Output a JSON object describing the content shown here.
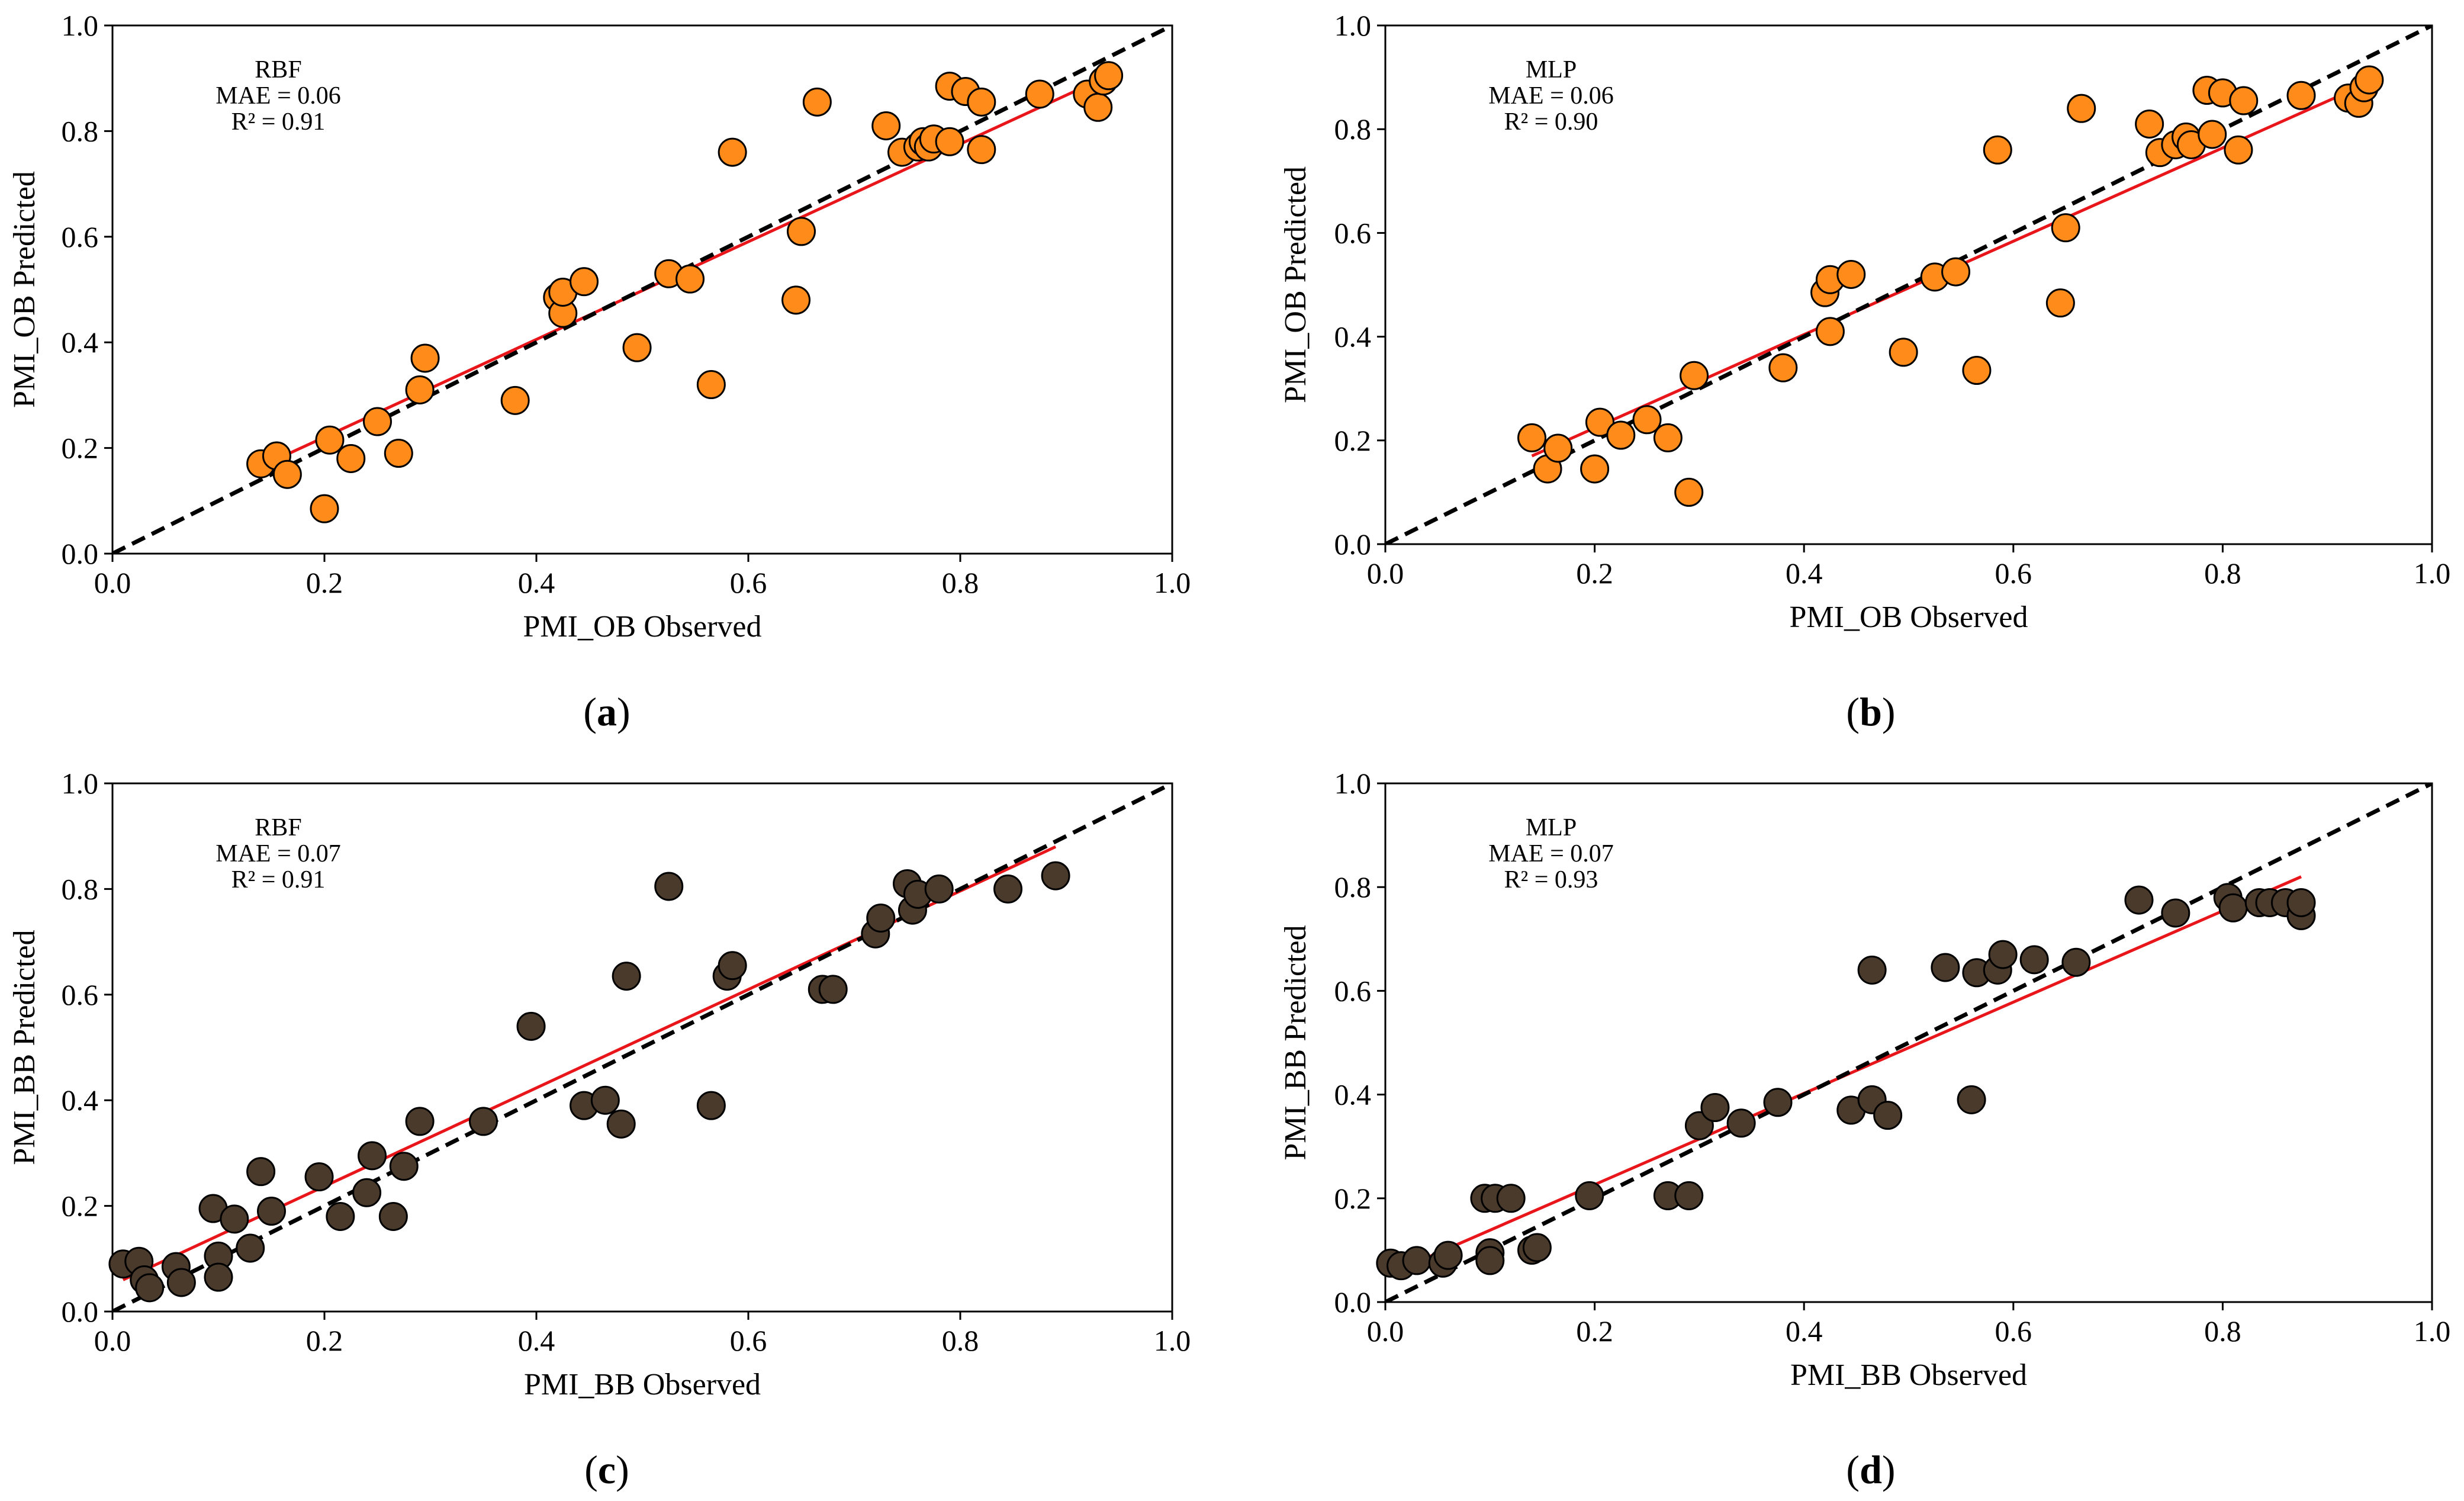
{
  "colors": {
    "orange_fill": "#ff8c1a",
    "brown_fill": "#4a3a2c",
    "marker_edge": "#000000",
    "fit_line": "#e8161b",
    "ref_line": "#000000"
  },
  "chart_data": [
    {
      "id": "a",
      "type": "scatter",
      "caption": {
        "open": "(",
        "letter": "a",
        "close": ")"
      },
      "xlabel": "PMI_OB Observed",
      "ylabel": "PMI_OB Predicted",
      "xlim": [
        0.0,
        1.0
      ],
      "ylim": [
        0.0,
        1.0
      ],
      "xticks": [
        "0.0",
        "0.2",
        "0.4",
        "0.6",
        "0.8",
        "1.0"
      ],
      "yticks": [
        "0.0",
        "0.2",
        "0.4",
        "0.6",
        "0.8",
        "1.0"
      ],
      "annotation": [
        "RBF",
        "MAE = 0.06",
        "R² = 0.91"
      ],
      "marker": "orange",
      "reference_line": {
        "style": "dashed",
        "x": [
          0.0,
          1.0
        ],
        "y": [
          0.0,
          1.0
        ]
      },
      "fit_line": {
        "x": [
          0.14,
          0.94
        ],
        "y": [
          0.165,
          0.905
        ]
      },
      "points": [
        [
          0.14,
          0.17
        ],
        [
          0.155,
          0.185
        ],
        [
          0.165,
          0.15
        ],
        [
          0.2,
          0.085
        ],
        [
          0.205,
          0.215
        ],
        [
          0.225,
          0.18
        ],
        [
          0.25,
          0.25
        ],
        [
          0.27,
          0.19
        ],
        [
          0.29,
          0.31
        ],
        [
          0.295,
          0.37
        ],
        [
          0.38,
          0.29
        ],
        [
          0.42,
          0.485
        ],
        [
          0.425,
          0.455
        ],
        [
          0.425,
          0.495
        ],
        [
          0.445,
          0.515
        ],
        [
          0.495,
          0.39
        ],
        [
          0.525,
          0.53
        ],
        [
          0.545,
          0.52
        ],
        [
          0.565,
          0.32
        ],
        [
          0.585,
          0.76
        ],
        [
          0.645,
          0.48
        ],
        [
          0.65,
          0.61
        ],
        [
          0.665,
          0.855
        ],
        [
          0.73,
          0.81
        ],
        [
          0.745,
          0.76
        ],
        [
          0.76,
          0.77
        ],
        [
          0.765,
          0.78
        ],
        [
          0.77,
          0.77
        ],
        [
          0.775,
          0.785
        ],
        [
          0.79,
          0.78
        ],
        [
          0.79,
          0.885
        ],
        [
          0.805,
          0.875
        ],
        [
          0.82,
          0.765
        ],
        [
          0.82,
          0.855
        ],
        [
          0.875,
          0.87
        ],
        [
          0.92,
          0.87
        ],
        [
          0.93,
          0.845
        ],
        [
          0.935,
          0.895
        ],
        [
          0.94,
          0.905
        ]
      ]
    },
    {
      "id": "b",
      "type": "scatter",
      "caption": {
        "open": "(",
        "letter": "b",
        "close": ")"
      },
      "xlabel": "PMI_OB Observed",
      "ylabel": "PMI_OB Predicted",
      "xlim": [
        0.0,
        1.0
      ],
      "ylim": [
        0.0,
        1.0
      ],
      "xticks": [
        "0.0",
        "0.2",
        "0.4",
        "0.6",
        "0.8",
        "1.0"
      ],
      "yticks": [
        "0.0",
        "0.2",
        "0.4",
        "0.6",
        "0.8",
        "1.0"
      ],
      "annotation": [
        "MLP",
        "MAE = 0.06",
        "R² = 0.90"
      ],
      "marker": "orange",
      "reference_line": {
        "style": "dashed",
        "x": [
          0.0,
          1.0
        ],
        "y": [
          0.0,
          1.0
        ]
      },
      "fit_line": {
        "x": [
          0.14,
          0.94
        ],
        "y": [
          0.17,
          0.89
        ]
      },
      "points": [
        [
          0.14,
          0.205
        ],
        [
          0.155,
          0.145
        ],
        [
          0.165,
          0.185
        ],
        [
          0.2,
          0.145
        ],
        [
          0.205,
          0.235
        ],
        [
          0.225,
          0.21
        ],
        [
          0.25,
          0.24
        ],
        [
          0.27,
          0.205
        ],
        [
          0.29,
          0.1
        ],
        [
          0.295,
          0.325
        ],
        [
          0.38,
          0.34
        ],
        [
          0.42,
          0.485
        ],
        [
          0.425,
          0.41
        ],
        [
          0.425,
          0.51
        ],
        [
          0.445,
          0.52
        ],
        [
          0.495,
          0.37
        ],
        [
          0.525,
          0.515
        ],
        [
          0.545,
          0.525
        ],
        [
          0.565,
          0.335
        ],
        [
          0.585,
          0.76
        ],
        [
          0.645,
          0.465
        ],
        [
          0.65,
          0.61
        ],
        [
          0.665,
          0.84
        ],
        [
          0.73,
          0.81
        ],
        [
          0.74,
          0.755
        ],
        [
          0.755,
          0.77
        ],
        [
          0.765,
          0.785
        ],
        [
          0.77,
          0.77
        ],
        [
          0.785,
          0.875
        ],
        [
          0.79,
          0.79
        ],
        [
          0.8,
          0.87
        ],
        [
          0.815,
          0.76
        ],
        [
          0.82,
          0.855
        ],
        [
          0.875,
          0.865
        ],
        [
          0.92,
          0.86
        ],
        [
          0.93,
          0.85
        ],
        [
          0.935,
          0.88
        ],
        [
          0.94,
          0.895
        ]
      ]
    },
    {
      "id": "c",
      "type": "scatter",
      "caption": {
        "open": "(",
        "letter": "c",
        "close": ")"
      },
      "xlabel": "PMI_BB Observed",
      "ylabel": "PMI_BB Predicted",
      "xlim": [
        0.0,
        1.0
      ],
      "ylim": [
        0.0,
        1.0
      ],
      "xticks": [
        "0.0",
        "0.2",
        "0.4",
        "0.6",
        "0.8",
        "1.0"
      ],
      "yticks": [
        "0.0",
        "0.2",
        "0.4",
        "0.6",
        "0.8",
        "1.0"
      ],
      "annotation": [
        "RBF",
        "MAE = 0.07",
        "R² = 0.91"
      ],
      "marker": "brown",
      "reference_line": {
        "style": "dashed",
        "x": [
          0.0,
          1.0
        ],
        "y": [
          0.0,
          1.0
        ]
      },
      "fit_line": {
        "x": [
          0.01,
          0.89
        ],
        "y": [
          0.06,
          0.88
        ]
      },
      "points": [
        [
          0.01,
          0.09
        ],
        [
          0.025,
          0.095
        ],
        [
          0.03,
          0.06
        ],
        [
          0.035,
          0.045
        ],
        [
          0.06,
          0.085
        ],
        [
          0.065,
          0.055
        ],
        [
          0.095,
          0.195
        ],
        [
          0.1,
          0.105
        ],
        [
          0.1,
          0.065
        ],
        [
          0.115,
          0.175
        ],
        [
          0.13,
          0.12
        ],
        [
          0.14,
          0.265
        ],
        [
          0.15,
          0.19
        ],
        [
          0.195,
          0.255
        ],
        [
          0.215,
          0.18
        ],
        [
          0.24,
          0.225
        ],
        [
          0.245,
          0.295
        ],
        [
          0.265,
          0.18
        ],
        [
          0.275,
          0.275
        ],
        [
          0.29,
          0.36
        ],
        [
          0.35,
          0.36
        ],
        [
          0.395,
          0.54
        ],
        [
          0.445,
          0.39
        ],
        [
          0.465,
          0.4
        ],
        [
          0.48,
          0.355
        ],
        [
          0.485,
          0.635
        ],
        [
          0.525,
          0.805
        ],
        [
          0.565,
          0.39
        ],
        [
          0.58,
          0.635
        ],
        [
          0.585,
          0.655
        ],
        [
          0.67,
          0.61
        ],
        [
          0.68,
          0.61
        ],
        [
          0.72,
          0.715
        ],
        [
          0.725,
          0.745
        ],
        [
          0.75,
          0.81
        ],
        [
          0.755,
          0.76
        ],
        [
          0.76,
          0.79
        ],
        [
          0.78,
          0.8
        ],
        [
          0.845,
          0.8
        ],
        [
          0.89,
          0.825
        ]
      ]
    },
    {
      "id": "d",
      "type": "scatter",
      "caption": {
        "open": "(",
        "letter": "d",
        "close": ")"
      },
      "xlabel": "PMI_BB Observed",
      "ylabel": "PMI_BB Predicted",
      "xlim": [
        0.0,
        1.0
      ],
      "ylim": [
        0.0,
        1.0
      ],
      "xticks": [
        "0.0",
        "0.2",
        "0.4",
        "0.6",
        "0.8",
        "1.0"
      ],
      "yticks": [
        "0.0",
        "0.2",
        "0.4",
        "0.6",
        "0.8",
        "1.0"
      ],
      "annotation": [
        "MLP",
        "MAE = 0.07",
        "R² = 0.93"
      ],
      "marker": "brown",
      "reference_line": {
        "style": "dashed",
        "x": [
          0.0,
          1.0
        ],
        "y": [
          0.0,
          1.0
        ]
      },
      "fit_line": {
        "x": [
          0.005,
          0.875
        ],
        "y": [
          0.055,
          0.82
        ]
      },
      "points": [
        [
          0.005,
          0.075
        ],
        [
          0.015,
          0.07
        ],
        [
          0.03,
          0.08
        ],
        [
          0.055,
          0.075
        ],
        [
          0.06,
          0.09
        ],
        [
          0.095,
          0.2
        ],
        [
          0.1,
          0.095
        ],
        [
          0.1,
          0.08
        ],
        [
          0.105,
          0.2
        ],
        [
          0.12,
          0.2
        ],
        [
          0.14,
          0.1
        ],
        [
          0.145,
          0.105
        ],
        [
          0.195,
          0.205
        ],
        [
          0.27,
          0.205
        ],
        [
          0.29,
          0.205
        ],
        [
          0.3,
          0.34
        ],
        [
          0.315,
          0.375
        ],
        [
          0.34,
          0.345
        ],
        [
          0.375,
          0.385
        ],
        [
          0.445,
          0.37
        ],
        [
          0.465,
          0.39
        ],
        [
          0.465,
          0.64
        ],
        [
          0.48,
          0.36
        ],
        [
          0.535,
          0.645
        ],
        [
          0.56,
          0.39
        ],
        [
          0.565,
          0.635
        ],
        [
          0.585,
          0.64
        ],
        [
          0.59,
          0.67
        ],
        [
          0.62,
          0.66
        ],
        [
          0.66,
          0.655
        ],
        [
          0.72,
          0.775
        ],
        [
          0.755,
          0.75
        ],
        [
          0.805,
          0.78
        ],
        [
          0.81,
          0.76
        ],
        [
          0.835,
          0.77
        ],
        [
          0.845,
          0.77
        ],
        [
          0.86,
          0.77
        ],
        [
          0.875,
          0.745
        ],
        [
          0.875,
          0.77
        ]
      ]
    }
  ]
}
